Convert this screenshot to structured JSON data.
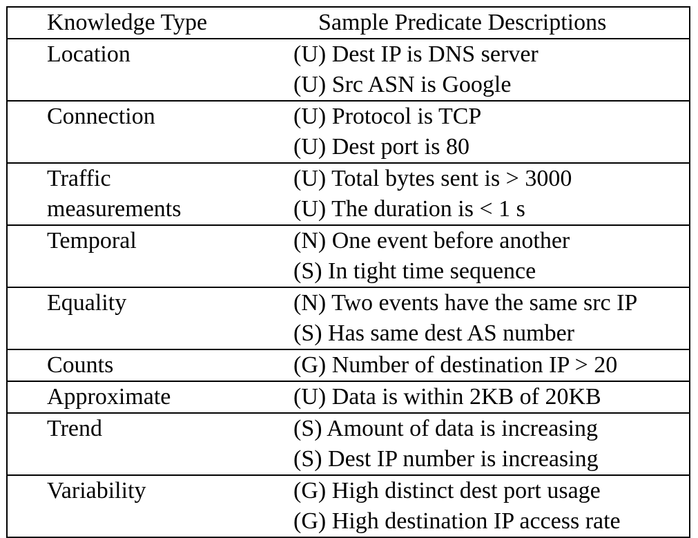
{
  "table": {
    "header": {
      "knowledge_type": "Knowledge Type",
      "predicates": "Sample Predicate Descriptions"
    },
    "rows": [
      {
        "type_lines": [
          "Location"
        ],
        "predicates": [
          "(U) Dest IP is DNS server",
          "(U) Src ASN is Google"
        ]
      },
      {
        "type_lines": [
          "Connection"
        ],
        "predicates": [
          "(U) Protocol is TCP",
          "(U) Dest port is 80"
        ]
      },
      {
        "type_lines": [
          "Traffic",
          "measurements"
        ],
        "predicates": [
          "(U) Total bytes sent is > 3000",
          "(U) The duration is < 1 s"
        ]
      },
      {
        "type_lines": [
          "Temporal"
        ],
        "predicates": [
          "(N) One event before another",
          "(S) In tight time sequence"
        ]
      },
      {
        "type_lines": [
          "Equality"
        ],
        "predicates": [
          "(N) Two events have the same src IP",
          "(S) Has same dest AS number"
        ]
      },
      {
        "type_lines": [
          "Counts"
        ],
        "predicates": [
          "(G) Number of destination IP > 20"
        ]
      },
      {
        "type_lines": [
          "Approximate"
        ],
        "predicates": [
          "(U) Data is within 2KB of 20KB"
        ]
      },
      {
        "type_lines": [
          "Trend"
        ],
        "predicates": [
          "(S) Amount of data is increasing",
          "(S) Dest IP number is increasing"
        ]
      },
      {
        "type_lines": [
          "Variability"
        ],
        "predicates": [
          "(G) High distinct dest port usage",
          "(G) High destination IP access rate"
        ]
      }
    ]
  }
}
